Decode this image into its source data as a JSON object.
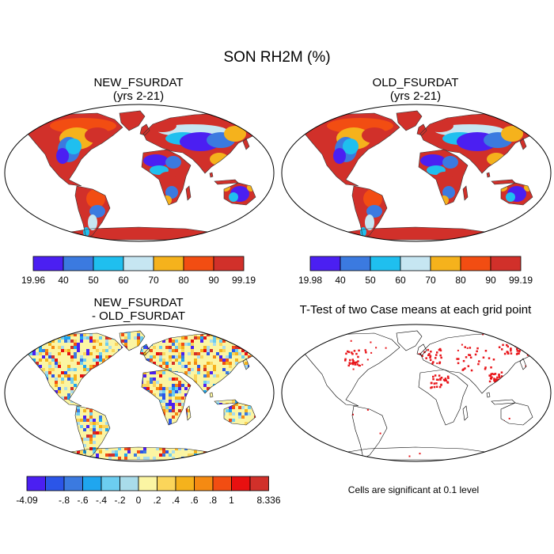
{
  "figure": {
    "title": "SON RH2M (%)"
  },
  "panels": [
    {
      "id": "new",
      "title_line1": "NEW_FSURDAT",
      "title_line2": "(yrs 2-21)",
      "colorbar_colors": [
        "#4b1ff2",
        "#3b7ae0",
        "#1fbfef",
        "#c6e6f2",
        "#f5b21c",
        "#f24d12",
        "#d1302a"
      ],
      "colorbar_labels": [
        "19.96",
        "40",
        "50",
        "60",
        "70",
        "80",
        "90",
        "99.19"
      ]
    },
    {
      "id": "old",
      "title_line1": "OLD_FSURDAT",
      "title_line2": "(yrs 2-21)",
      "colorbar_colors": [
        "#4b1ff2",
        "#3b7ae0",
        "#1fbfef",
        "#c6e6f2",
        "#f5b21c",
        "#f24d12",
        "#d1302a"
      ],
      "colorbar_labels": [
        "19.98",
        "40",
        "50",
        "60",
        "70",
        "80",
        "90",
        "99.19"
      ]
    },
    {
      "id": "diff",
      "title_line1": "NEW_FSURDAT",
      "title_line2": "- OLD_FSURDAT",
      "colorbar_colors": [
        "#4b1ff2",
        "#2b55e8",
        "#3b7ae0",
        "#1fa6ef",
        "#6ccdf0",
        "#a9dcea",
        "#fbf5a3",
        "#fbd55a",
        "#f5b21c",
        "#f58a12",
        "#f24d12",
        "#e81010",
        "#d1302a"
      ],
      "colorbar_labels": [
        "-4.09",
        "-.8",
        "-.6",
        "-.4",
        "-.2",
        "0",
        ".2",
        ".4",
        ".6",
        ".8",
        "1",
        "8.336"
      ]
    },
    {
      "id": "ttest",
      "title_line1": "T-Test of two Case means at each grid point",
      "note": "Cells are significant at 0.1 level"
    }
  ]
}
